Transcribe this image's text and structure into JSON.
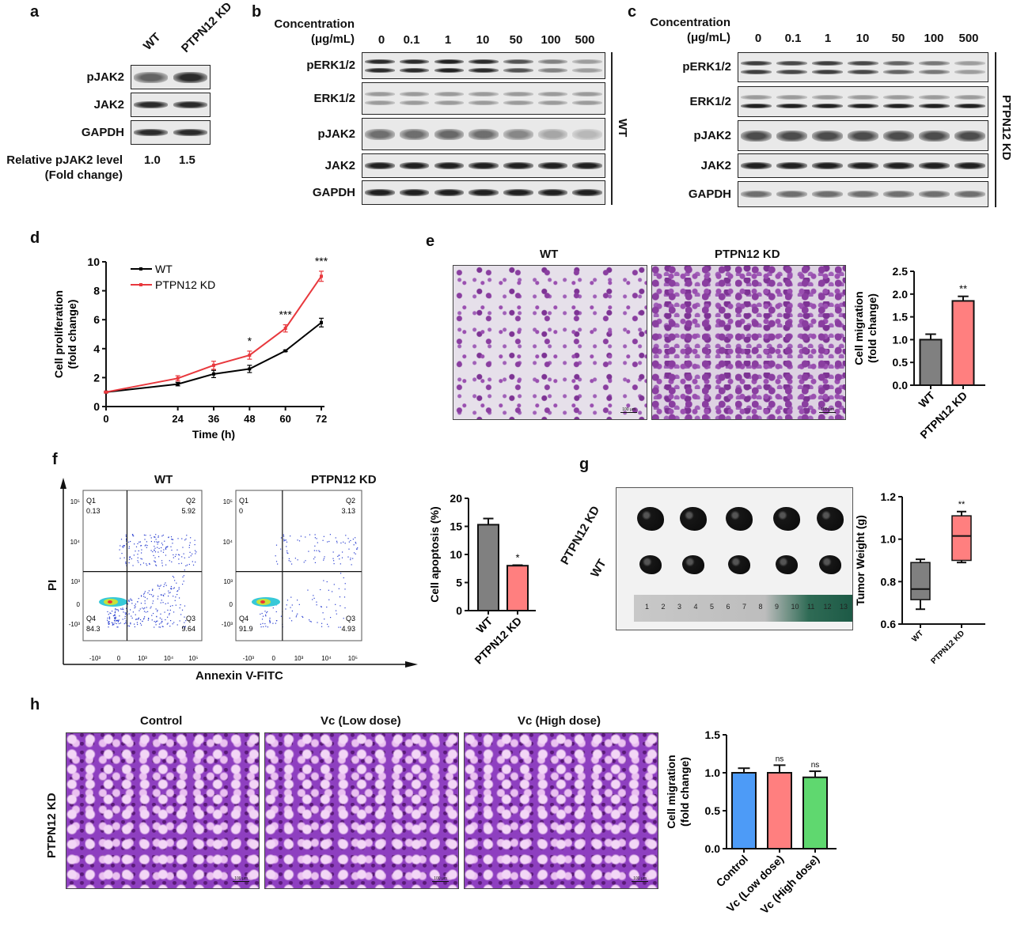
{
  "panel_letters": {
    "a": "a",
    "b": "b",
    "c": "c",
    "d": "d",
    "e": "e",
    "f": "f",
    "g": "g",
    "h": "h"
  },
  "panel_a": {
    "columns": [
      "WT",
      "PTPN12 KD"
    ],
    "rows": [
      "pJAK2",
      "JAK2",
      "GAPDH"
    ],
    "quant_label": [
      "Relative pJAK2 level",
      "(Fold change)"
    ],
    "quant_values": [
      "1.0",
      "1.5"
    ]
  },
  "panel_b": {
    "header": [
      "Concentration",
      "(μg/mL)"
    ],
    "concentrations": [
      "0",
      "0.1",
      "1",
      "10",
      "50",
      "100",
      "500"
    ],
    "rows": [
      "pERK1/2",
      "ERK1/2",
      "pJAK2",
      "JAK2",
      "GAPDH"
    ],
    "side_label": "WT"
  },
  "panel_c": {
    "header": [
      "Concentration",
      "(μg/mL)"
    ],
    "concentrations": [
      "0",
      "0.1",
      "1",
      "10",
      "50",
      "100",
      "500"
    ],
    "rows": [
      "pERK1/2",
      "ERK1/2",
      "pJAK2",
      "JAK2",
      "GAPDH"
    ],
    "side_label": "PTPN12 KD"
  },
  "panel_e": {
    "image_titles": [
      "WT",
      "PTPN12 KD"
    ],
    "scale_bar": "100 μm"
  },
  "panel_f": {
    "plot_titles": [
      "WT",
      "PTPN12 KD"
    ],
    "y_axis": "PI",
    "x_axis": "Annexin V-FITC",
    "x_ticks": [
      "-10³",
      "0",
      "10³",
      "10⁴",
      "10⁵"
    ],
    "y_ticks": [
      "10⁵",
      "10⁴",
      "10³",
      "0",
      "-10³"
    ],
    "quadrants": [
      {
        "Q1": "0.13",
        "Q2": "5.92",
        "Q3": "9.64",
        "Q4": "84.3"
      },
      {
        "Q1": "0",
        "Q2": "3.13",
        "Q3": "4.93",
        "Q4": "91.9"
      }
    ],
    "quadrant_names": [
      "Q1",
      "Q2",
      "Q3",
      "Q4"
    ]
  },
  "panel_g": {
    "row_labels": [
      "PTPN12 KD",
      "WT"
    ],
    "ruler_numbers": [
      "1",
      "2",
      "3",
      "4",
      "5",
      "6",
      "7",
      "8",
      "9",
      "10",
      "11",
      "12",
      "13"
    ]
  },
  "panel_h": {
    "image_titles": [
      "Control",
      "Vc (Low dose)",
      "Vc (High dose)"
    ],
    "row_label": "PTPN12 KD",
    "scale_bar": "100 μm"
  },
  "chart_data": [
    {
      "id": "d",
      "type": "line",
      "x": [
        0,
        24,
        36,
        48,
        60,
        72
      ],
      "xlabel": "Time (h)",
      "ylabel": [
        "Cell proliferation",
        "(fold change)"
      ],
      "ylim": [
        0,
        10
      ],
      "yticks": [
        "0",
        "2",
        "4",
        "6",
        "8",
        "10"
      ],
      "xticks": [
        "0",
        "24",
        "36",
        "48",
        "60",
        "72"
      ],
      "legend": "top-left",
      "series": [
        {
          "name": "WT",
          "color": "#000000",
          "values": [
            1.0,
            1.55,
            2.25,
            2.6,
            3.85,
            5.8
          ],
          "errors": [
            0.05,
            0.12,
            0.25,
            0.25,
            0.05,
            0.3
          ]
        },
        {
          "name": "PTPN12 KD",
          "color": "#e8383d",
          "values": [
            1.0,
            1.95,
            2.85,
            3.55,
            5.4,
            9.0
          ],
          "errors": [
            0.05,
            0.18,
            0.28,
            0.28,
            0.25,
            0.35
          ]
        }
      ],
      "annotations": [
        "",
        "",
        "",
        "*",
        "***",
        "***"
      ]
    },
    {
      "id": "e",
      "type": "bar",
      "categories": [
        "WT",
        "PTPN12 KD"
      ],
      "values": [
        1.0,
        1.85
      ],
      "errors": [
        0.12,
        0.1
      ],
      "colors": [
        "#808080",
        "#ff7f7f"
      ],
      "annotations": [
        "",
        "**"
      ],
      "ylabel": [
        "Cell migration",
        "(fold change)"
      ],
      "ylim": [
        0,
        2.5
      ],
      "yticks": [
        "0.0",
        "0.5",
        "1.0",
        "1.5",
        "2.0",
        "2.5"
      ]
    },
    {
      "id": "f",
      "type": "bar",
      "categories": [
        "WT",
        "PTPN12 KD"
      ],
      "values": [
        15.3,
        8.0
      ],
      "errors": [
        1.1,
        0.1
      ],
      "colors": [
        "#808080",
        "#ff7f7f"
      ],
      "annotations": [
        "",
        "*"
      ],
      "ylabel": [
        "Cell apoptosis (%)"
      ],
      "ylim": [
        0,
        20
      ],
      "yticks": [
        "0",
        "5",
        "10",
        "15",
        "20"
      ]
    },
    {
      "id": "g",
      "type": "box",
      "categories": [
        "WT",
        "PTPN12 KD"
      ],
      "boxes": [
        {
          "min": 0.67,
          "q1": 0.715,
          "median": 0.765,
          "q3": 0.89,
          "max": 0.905
        },
        {
          "min": 0.89,
          "q1": 0.9,
          "median": 1.015,
          "q3": 1.11,
          "max": 1.13
        }
      ],
      "colors": [
        "#808080",
        "#ff7f7f"
      ],
      "annotations": [
        "",
        "**"
      ],
      "ylabel": [
        "Tumor Weight (g)"
      ],
      "ylim": [
        0.6,
        1.2
      ],
      "yticks": [
        "0.6",
        "0.8",
        "1.0",
        "1.2"
      ]
    },
    {
      "id": "h",
      "type": "bar",
      "categories": [
        "Control",
        "Vc (Low dose)",
        "Vc (High dose)"
      ],
      "values": [
        1.0,
        1.0,
        0.94
      ],
      "errors": [
        0.06,
        0.1,
        0.08
      ],
      "colors": [
        "#4d9bf7",
        "#ff7f7f",
        "#5fd86f"
      ],
      "annotations": [
        "",
        "ns",
        "ns"
      ],
      "ylabel": [
        "Cell migration",
        "(fold change)"
      ],
      "ylim": [
        0,
        1.5
      ],
      "yticks": [
        "0.0",
        "0.5",
        "1.0",
        "1.5"
      ]
    }
  ]
}
